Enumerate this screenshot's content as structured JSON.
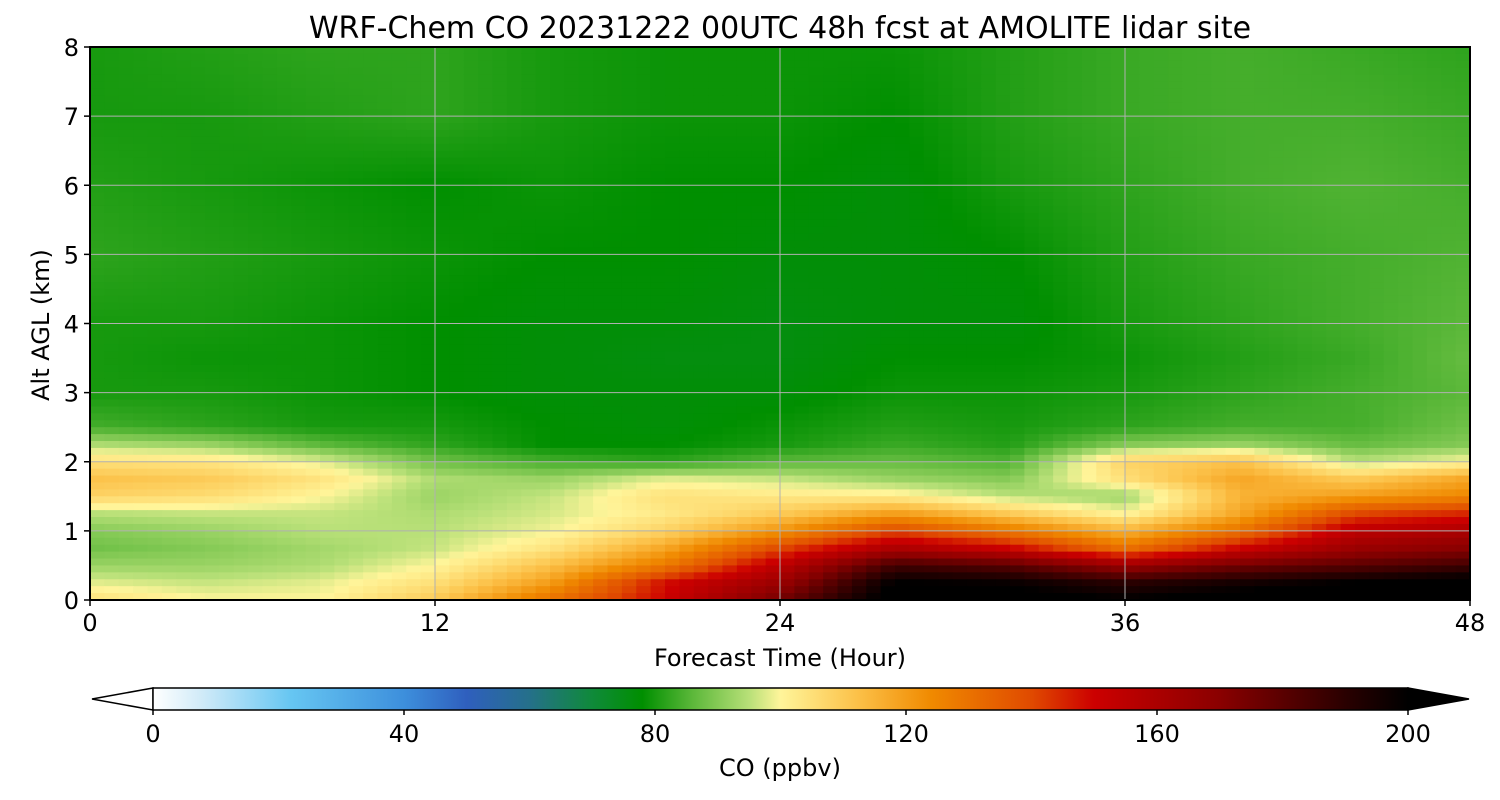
{
  "chart_data": {
    "type": "heatmap",
    "title": "WRF-Chem CO  20231222 00UTC 48h fcst at AMOLITE lidar site",
    "xlabel": "Forecast Time (Hour)",
    "ylabel": "Alt AGL (km)",
    "xlim": [
      0,
      48
    ],
    "ylim": [
      0,
      8
    ],
    "x_ticks": [
      "0",
      "12",
      "24",
      "36",
      "48"
    ],
    "y_ticks": [
      "0",
      "1",
      "2",
      "3",
      "4",
      "5",
      "6",
      "7",
      "8"
    ],
    "grid": true,
    "colorbar": {
      "label": "CO  (ppbv)",
      "min": 0,
      "max": 200,
      "extend": "both",
      "ticks": [
        "0",
        "40",
        "80",
        "120",
        "160",
        "200"
      ],
      "stops": [
        {
          "value": 0,
          "color": "#ffffff"
        },
        {
          "value": 8,
          "color": "#cfeaf8"
        },
        {
          "value": 22,
          "color": "#66c6f2"
        },
        {
          "value": 40,
          "color": "#3d8fdc"
        },
        {
          "value": 50,
          "color": "#2f5fbe"
        },
        {
          "value": 60,
          "color": "#25708a"
        },
        {
          "value": 70,
          "color": "#0f8a3a"
        },
        {
          "value": 78,
          "color": "#008f00"
        },
        {
          "value": 86,
          "color": "#5cb83a"
        },
        {
          "value": 95,
          "color": "#b8e078"
        },
        {
          "value": 100,
          "color": "#fff59a"
        },
        {
          "value": 112,
          "color": "#fcc24a"
        },
        {
          "value": 124,
          "color": "#f08a00"
        },
        {
          "value": 140,
          "color": "#e04a00"
        },
        {
          "value": 150,
          "color": "#cc0000"
        },
        {
          "value": 170,
          "color": "#8a0000"
        },
        {
          "value": 190,
          "color": "#2a0000"
        },
        {
          "value": 200,
          "color": "#000000"
        }
      ]
    },
    "x": [
      0,
      4,
      8,
      12,
      16,
      20,
      24,
      28,
      32,
      36,
      40,
      44,
      48
    ],
    "y": [
      0,
      0.25,
      0.5,
      0.75,
      1,
      1.25,
      1.5,
      1.75,
      2,
      2.25,
      2.5,
      3,
      3.5,
      4,
      5,
      6,
      7,
      8
    ],
    "z": [
      [
        105,
        100,
        100,
        110,
        130,
        150,
        175,
        205,
        205,
        200,
        205,
        210,
        212
      ],
      [
        98,
        96,
        98,
        105,
        120,
        148,
        165,
        200,
        198,
        190,
        195,
        200,
        205
      ],
      [
        92,
        92,
        94,
        100,
        112,
        128,
        155,
        185,
        180,
        165,
        175,
        180,
        185
      ],
      [
        88,
        90,
        93,
        96,
        104,
        118,
        140,
        160,
        150,
        130,
        150,
        165,
        170
      ],
      [
        90,
        92,
        95,
        95,
        99,
        108,
        122,
        140,
        128,
        115,
        130,
        155,
        160
      ],
      [
        95,
        96,
        96,
        94,
        97,
        103,
        110,
        120,
        110,
        100,
        118,
        140,
        145
      ],
      [
        108,
        106,
        100,
        92,
        96,
        105,
        103,
        102,
        95,
        92,
        115,
        120,
        125
      ],
      [
        112,
        110,
        104,
        94,
        92,
        98,
        96,
        92,
        90,
        105,
        118,
        110,
        118
      ],
      [
        105,
        104,
        98,
        88,
        84,
        82,
        86,
        87,
        85,
        108,
        112,
        95,
        100
      ],
      [
        94,
        92,
        86,
        82,
        78,
        78,
        80,
        83,
        81,
        90,
        92,
        87,
        90
      ],
      [
        84,
        82,
        80,
        80,
        78,
        77,
        79,
        81,
        80,
        82,
        84,
        84,
        88
      ],
      [
        80,
        80,
        79,
        78,
        77,
        77,
        77,
        79,
        79,
        80,
        82,
        84,
        86
      ],
      [
        80,
        79,
        79,
        78,
        77,
        76,
        76,
        78,
        78,
        79,
        81,
        83,
        87
      ],
      [
        80,
        80,
        79,
        78,
        77,
        77,
        76,
        77,
        77,
        80,
        82,
        84,
        86
      ],
      [
        82,
        81,
        80,
        79,
        78,
        78,
        77,
        77,
        78,
        81,
        83,
        84,
        85
      ],
      [
        81,
        80,
        79,
        78,
        79,
        78,
        78,
        77,
        80,
        82,
        84,
        85,
        84
      ],
      [
        80,
        80,
        81,
        82,
        80,
        79,
        79,
        78,
        81,
        83,
        84,
        84,
        83
      ],
      [
        80,
        81,
        82,
        82,
        80,
        79,
        79,
        79,
        81,
        83,
        84,
        83,
        82
      ]
    ]
  }
}
